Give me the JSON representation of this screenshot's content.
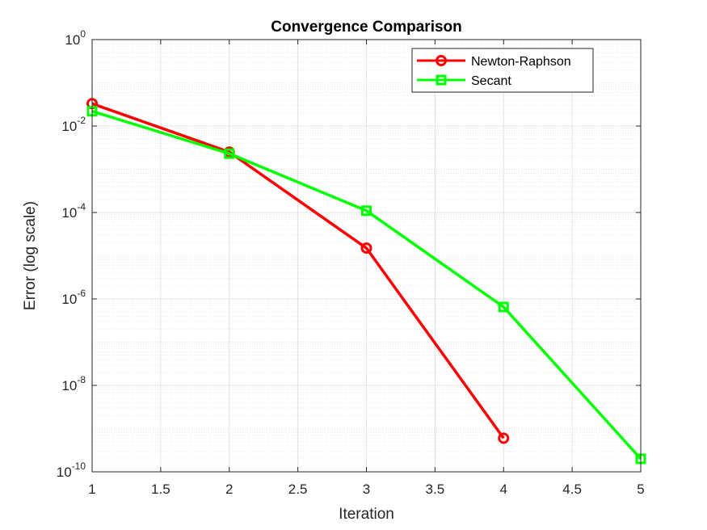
{
  "chart_data": {
    "type": "line",
    "title": "Convergence Comparison",
    "xlabel": "Iteration",
    "ylabel": "Error (log scale)",
    "xlim": [
      1,
      5
    ],
    "ylim": [
      1e-10,
      1
    ],
    "yscale": "log",
    "grid": true,
    "minor_grid": true,
    "legend_position": "top-right",
    "x_ticks": [
      "1",
      "1.5",
      "2",
      "2.5",
      "3",
      "3.5",
      "4",
      "4.5",
      "5"
    ],
    "y_ticks": [
      {
        "base": "10",
        "exp": "0"
      },
      {
        "base": "10",
        "exp": "-2"
      },
      {
        "base": "10",
        "exp": "-4"
      },
      {
        "base": "10",
        "exp": "-6"
      },
      {
        "base": "10",
        "exp": "-8"
      },
      {
        "base": "10",
        "exp": "-10"
      }
    ],
    "series": [
      {
        "name": "Newton-Raphson",
        "color": "#ff0000",
        "marker": "circle",
        "x": [
          1,
          2,
          3,
          4
        ],
        "y": [
          0.033,
          0.0025,
          1.5e-05,
          6e-10
        ]
      },
      {
        "name": "Secant",
        "color": "#00ff00",
        "marker": "square",
        "x": [
          1,
          2,
          3,
          4,
          5
        ],
        "y": [
          0.022,
          0.0023,
          0.00011,
          6.5e-07,
          2e-10
        ]
      }
    ]
  }
}
